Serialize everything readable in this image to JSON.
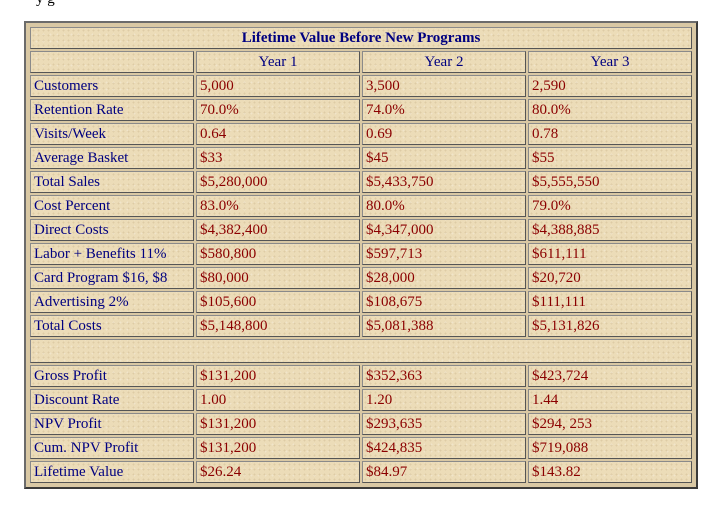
{
  "top_text": "y g",
  "table": {
    "title": "Lifetime Value Before New Programs",
    "headers": [
      "",
      "Year 1",
      "Year 2",
      "Year 3"
    ],
    "rows_top": [
      {
        "label": "Customers",
        "values": [
          "5,000",
          "3,500",
          "2,590"
        ]
      },
      {
        "label": "Retention Rate",
        "values": [
          "70.0%",
          "74.0%",
          "80.0%"
        ]
      },
      {
        "label": "Visits/Week",
        "values": [
          "0.64",
          "0.69",
          "0.78"
        ]
      },
      {
        "label": "Average Basket",
        "values": [
          "$33",
          "$45",
          "$55"
        ]
      },
      {
        "label": "Total Sales",
        "values": [
          "$5,280,000",
          "$5,433,750",
          "$5,555,550"
        ]
      },
      {
        "label": "Cost Percent",
        "values": [
          "83.0%",
          "80.0%",
          "79.0%"
        ]
      },
      {
        "label": "Direct Costs",
        "values": [
          "$4,382,400",
          "$4,347,000",
          "$4,388,885"
        ]
      },
      {
        "label": "Labor + Benefits 11%",
        "values": [
          "$580,800",
          "$597,713",
          "$611,111"
        ]
      },
      {
        "label": "Card Program $16, $8",
        "values": [
          "$80,000",
          "$28,000",
          "$20,720"
        ]
      },
      {
        "label": "Advertising 2%",
        "values": [
          "$105,600",
          "$108,675",
          "$111,111"
        ]
      },
      {
        "label": "Total Costs",
        "values": [
          "$5,148,800",
          "$5,081,388",
          "$5,131,826"
        ]
      }
    ],
    "rows_bottom": [
      {
        "label": "Gross Profit",
        "values": [
          "$131,200",
          "$352,363",
          "$423,724"
        ]
      },
      {
        "label": "Discount Rate",
        "values": [
          "1.00",
          "1.20",
          "1.44"
        ]
      },
      {
        "label": "NPV Profit",
        "values": [
          "$131,200",
          "$293,635",
          "$294, 253"
        ]
      },
      {
        "label": "Cum. NPV Profit",
        "values": [
          "$131,200",
          "$424,835",
          "$719,088"
        ]
      },
      {
        "label": "Lifetime Value",
        "values": [
          "$26.24",
          "$84.97",
          "$143.82"
        ]
      }
    ]
  }
}
